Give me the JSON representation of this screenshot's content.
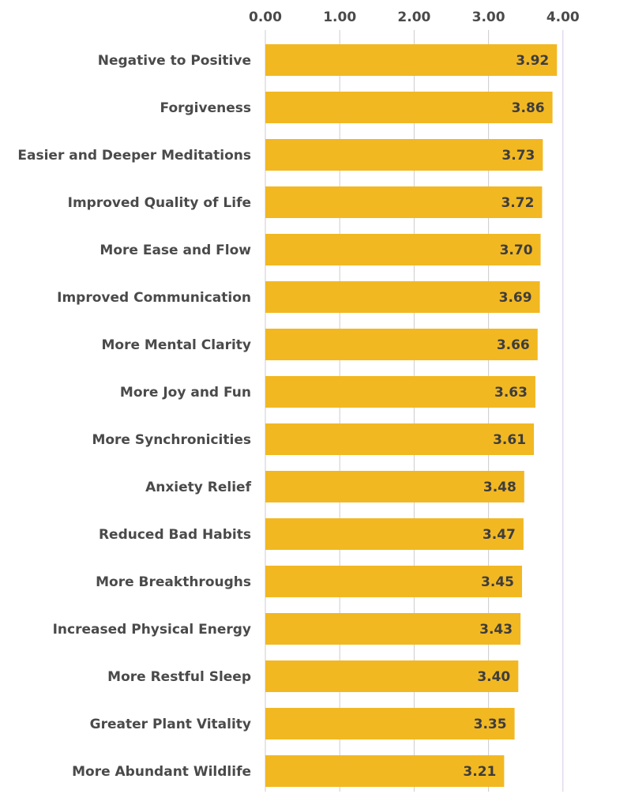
{
  "chart_data": {
    "type": "bar",
    "orientation": "horizontal",
    "title": "",
    "xlabel": "",
    "ylabel": "",
    "xlim": [
      0,
      4
    ],
    "ticks": [
      "0.00",
      "1.00",
      "2.00",
      "3.00",
      "4.00"
    ],
    "tick_values": [
      0,
      1,
      2,
      3,
      4
    ],
    "grid": true,
    "bar_color": "#F2B822",
    "grid_color": "#cccccc",
    "axis_color": "#d9c8e3",
    "categories": [
      "Negative to Positive",
      "Forgiveness",
      "Easier and Deeper Meditations",
      "Improved Quality of Life",
      "More Ease and Flow",
      "Improved Communication",
      "More Mental Clarity",
      "More Joy and Fun",
      "More Synchronicities",
      "Anxiety Relief",
      "Reduced Bad Habits",
      "More Breakthroughs",
      "Increased Physical Energy",
      "More Restful Sleep",
      "Greater Plant Vitality",
      "More Abundant Wildlife"
    ],
    "values": [
      3.92,
      3.86,
      3.73,
      3.72,
      3.7,
      3.69,
      3.66,
      3.63,
      3.61,
      3.48,
      3.47,
      3.45,
      3.43,
      3.4,
      3.35,
      3.21
    ],
    "value_labels": [
      "3.92",
      "3.86",
      "3.73",
      "3.72",
      "3.70",
      "3.69",
      "3.66",
      "3.63",
      "3.61",
      "3.48",
      "3.47",
      "3.45",
      "3.43",
      "3.40",
      "3.35",
      "3.21"
    ]
  }
}
